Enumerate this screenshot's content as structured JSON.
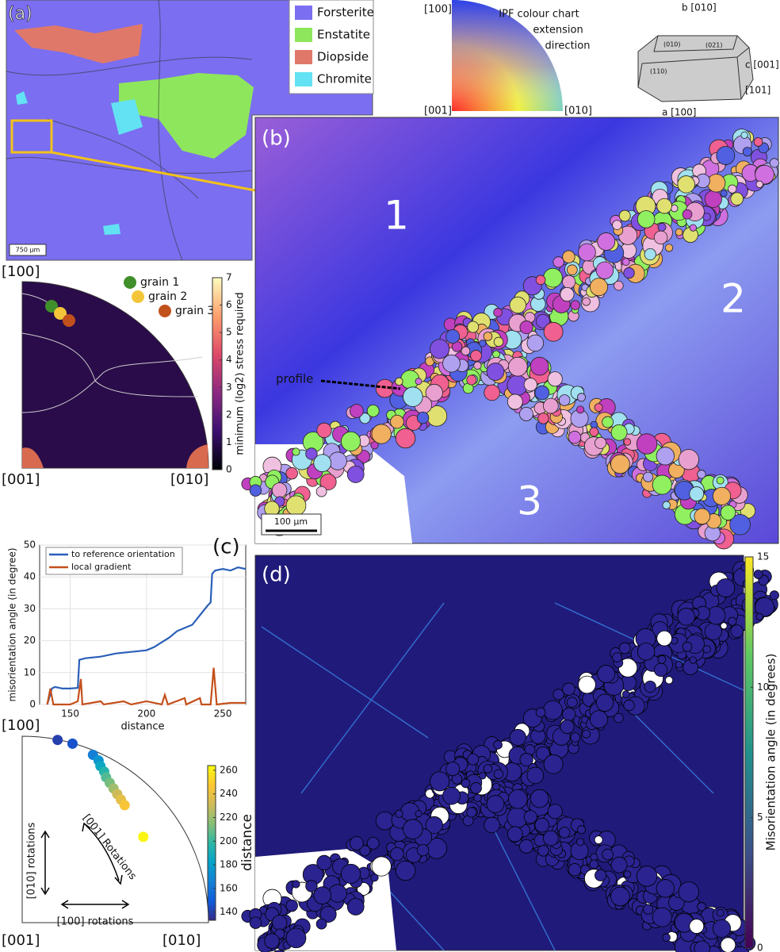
{
  "panel_a": {
    "label": "(a)",
    "scale_bar": "750 μm",
    "legend": [
      {
        "name": "Forsterite",
        "color": "#7b6ef0"
      },
      {
        "name": "Enstatite",
        "color": "#8ee65c"
      },
      {
        "name": "Diopside",
        "color": "#e0786a"
      },
      {
        "name": "Chromite",
        "color": "#62e2f2"
      }
    ]
  },
  "ipf_key": {
    "title": [
      "IPF colour chart",
      "extension",
      "direction"
    ],
    "top": "[100]",
    "left": "[001]",
    "right": "[010]"
  },
  "crystal": {
    "labels": [
      "b [010]",
      "(010)",
      "(021)",
      "c [001]",
      "(110)",
      "[101]",
      "a [100]"
    ]
  },
  "panel_b": {
    "label": "(b)",
    "grains": [
      "1",
      "2",
      "3"
    ],
    "profile": "profile",
    "scale_bar": "100 μm"
  },
  "stress_map": {
    "top": "[100]",
    "left": "[001]",
    "right": "[010]",
    "legend": [
      {
        "name": "grain 1",
        "color": "#3f8f2a"
      },
      {
        "name": "grain 2",
        "color": "#f3c63a"
      },
      {
        "name": "grain 3",
        "color": "#c2501c"
      }
    ],
    "colorbar": {
      "label": "minimum (log2) stress required",
      "lim": [
        0,
        7
      ],
      "ticks": [
        0,
        1,
        2,
        3,
        4,
        5,
        6,
        7
      ],
      "colormap": [
        "#000004",
        "#3b0f70",
        "#8c2981",
        "#de4968",
        "#fe9f6d",
        "#fcfdbf"
      ]
    }
  },
  "chart_data": [
    {
      "type": "line",
      "label": "(c)",
      "x_label": "distance",
      "y_label": "misorientation angle (in degree)",
      "xlim": [
        130,
        265
      ],
      "xticks": [
        150,
        200,
        250
      ],
      "ylim": [
        0,
        50
      ],
      "yticks": [
        0,
        10,
        20,
        30,
        40,
        50
      ],
      "grid": true,
      "series": [
        {
          "name": "to reference orientation",
          "color": "#2a5fb8",
          "x": [
            135,
            138,
            140,
            145,
            150,
            155,
            156,
            160,
            170,
            180,
            190,
            200,
            205,
            210,
            215,
            220,
            225,
            230,
            235,
            240,
            242,
            243,
            245,
            250,
            255,
            260,
            265
          ],
          "values": [
            0,
            5,
            5.5,
            5,
            5,
            5.2,
            14,
            14.5,
            15,
            16,
            16.5,
            17,
            18,
            19.5,
            21,
            23,
            24,
            25,
            28,
            31,
            32,
            41,
            42,
            42.5,
            42,
            43,
            42.5
          ]
        },
        {
          "name": "local gradient",
          "color": "#c4501c",
          "x": [
            135,
            137,
            139,
            150,
            155,
            157,
            158,
            170,
            172,
            185,
            190,
            200,
            210,
            212,
            214,
            225,
            226,
            235,
            236,
            242,
            244,
            246,
            255,
            265
          ],
          "values": [
            0,
            5,
            0,
            0,
            1,
            8,
            0,
            1,
            0,
            1,
            0,
            1,
            0,
            3,
            0,
            2,
            0,
            2,
            0,
            0,
            11.5,
            0,
            0.5,
            0.5
          ]
        }
      ]
    },
    {
      "type": "scatter",
      "top": "[100]",
      "left": "[001]",
      "right": "[010]",
      "annotations": [
        "[010] rotations",
        "[001] Rotations",
        "[100] rotations"
      ],
      "x": [
        0.19,
        0.27,
        0.38,
        0.41,
        0.42,
        0.44,
        0.45,
        0.47,
        0.49,
        0.51,
        0.53,
        0.55,
        0.65
      ],
      "y": [
        0.98,
        0.96,
        0.9,
        0.87,
        0.84,
        0.81,
        0.78,
        0.75,
        0.72,
        0.69,
        0.66,
        0.63,
        0.46
      ],
      "values": [
        140,
        146,
        165,
        175,
        185,
        195,
        205,
        212,
        220,
        230,
        238,
        245,
        262
      ],
      "colorbar": {
        "label": "distance",
        "lim": [
          133,
          264
        ],
        "ticks": [
          140,
          160,
          180,
          200,
          220,
          240,
          260
        ],
        "colormap": [
          "#352a87",
          "#0f5cdd",
          "#1481d6",
          "#06a4ca",
          "#2eb7a4",
          "#87bf77",
          "#d1bb59",
          "#fec832",
          "#f9fb0e"
        ]
      }
    }
  ],
  "panel_d": {
    "label": "(d)",
    "colorbar": {
      "label": "Misorientation angle (in degrees)",
      "lim": [
        0,
        15
      ],
      "ticks": [
        0,
        5,
        10,
        15
      ],
      "colormap": [
        "#440154",
        "#3b528b",
        "#21918c",
        "#5ec962",
        "#fde725"
      ]
    }
  }
}
